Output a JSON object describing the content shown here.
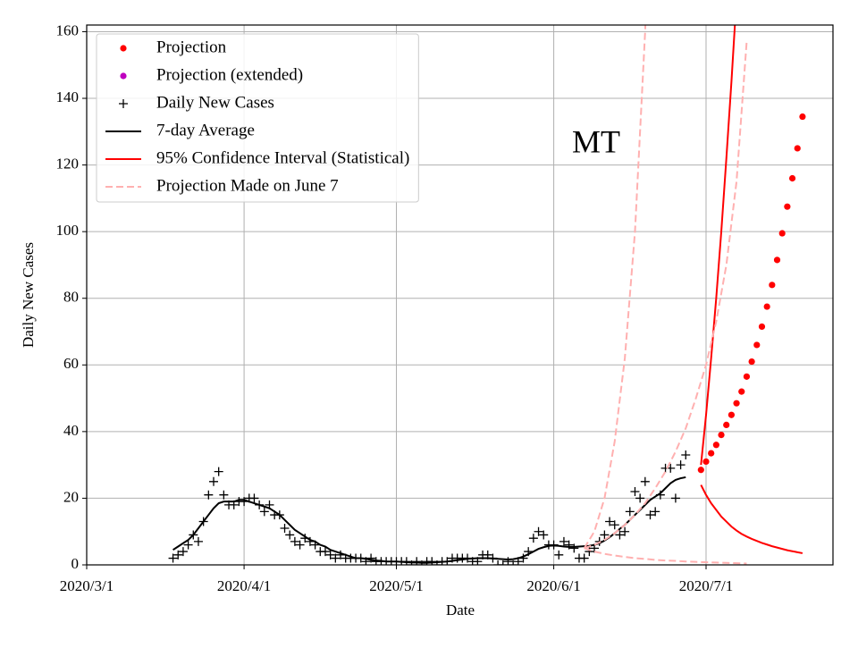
{
  "chart_data": {
    "type": "line",
    "title": "MT",
    "xlabel": "Date",
    "ylabel": "Daily New Cases",
    "xlim": [
      "2020/3/1",
      "2020/7/26"
    ],
    "xticks": [
      "2020/3/1",
      "2020/4/1",
      "2020/5/1",
      "2020/6/1",
      "2020/7/1"
    ],
    "ylim": [
      0,
      162
    ],
    "yticks": [
      0,
      20,
      40,
      60,
      80,
      100,
      120,
      140,
      160
    ],
    "grid": true,
    "legend": "upper left",
    "series": [
      {
        "name": "Projection",
        "color": "#ff0000",
        "style": "dot",
        "x": [
          "2020/6/30",
          "2020/7/1",
          "2020/7/2",
          "2020/7/3",
          "2020/7/4",
          "2020/7/5",
          "2020/7/6",
          "2020/7/7",
          "2020/7/8",
          "2020/7/9",
          "2020/7/10",
          "2020/7/11",
          "2020/7/12",
          "2020/7/13",
          "2020/7/14",
          "2020/7/15",
          "2020/7/16",
          "2020/7/17",
          "2020/7/18",
          "2020/7/19",
          "2020/7/20"
        ],
        "values": [
          28.5,
          31,
          33.5,
          36,
          39,
          42,
          45,
          48.5,
          52,
          56.5,
          61,
          66,
          71.5,
          77.5,
          84,
          91.5,
          99.5,
          107.5,
          116,
          125,
          134.5
        ]
      },
      {
        "name": "Projection (extended)",
        "color": "#bf00bf",
        "style": "dot",
        "x": [],
        "values": []
      },
      {
        "name": "Daily New Cases",
        "color": "#000000",
        "style": "plus",
        "x": [
          "2020/3/18",
          "2020/3/19",
          "2020/3/20",
          "2020/3/21",
          "2020/3/22",
          "2020/3/23",
          "2020/3/24",
          "2020/3/25",
          "2020/3/26",
          "2020/3/27",
          "2020/3/28",
          "2020/3/29",
          "2020/3/30",
          "2020/3/31",
          "2020/4/1",
          "2020/4/2",
          "2020/4/3",
          "2020/4/4",
          "2020/4/5",
          "2020/4/6",
          "2020/4/7",
          "2020/4/8",
          "2020/4/9",
          "2020/4/10",
          "2020/4/11",
          "2020/4/12",
          "2020/4/13",
          "2020/4/14",
          "2020/4/15",
          "2020/4/16",
          "2020/4/17",
          "2020/4/18",
          "2020/4/19",
          "2020/4/20",
          "2020/4/21",
          "2020/4/22",
          "2020/4/23",
          "2020/4/24",
          "2020/4/25",
          "2020/4/26",
          "2020/4/27",
          "2020/4/28",
          "2020/4/29",
          "2020/4/30",
          "2020/5/1",
          "2020/5/2",
          "2020/5/3",
          "2020/5/4",
          "2020/5/5",
          "2020/5/6",
          "2020/5/7",
          "2020/5/8",
          "2020/5/9",
          "2020/5/10",
          "2020/5/11",
          "2020/5/12",
          "2020/5/13",
          "2020/5/14",
          "2020/5/15",
          "2020/5/16",
          "2020/5/17",
          "2020/5/18",
          "2020/5/19",
          "2020/5/20",
          "2020/5/21",
          "2020/5/22",
          "2020/5/23",
          "2020/5/24",
          "2020/5/25",
          "2020/5/26",
          "2020/5/27",
          "2020/5/28",
          "2020/5/29",
          "2020/5/30",
          "2020/5/31",
          "2020/6/1",
          "2020/6/2",
          "2020/6/3",
          "2020/6/4",
          "2020/6/5",
          "2020/6/6",
          "2020/6/7",
          "2020/6/8",
          "2020/6/9",
          "2020/6/10",
          "2020/6/11",
          "2020/6/12",
          "2020/6/13",
          "2020/6/14",
          "2020/6/15",
          "2020/6/16",
          "2020/6/17",
          "2020/6/18",
          "2020/6/19",
          "2020/6/20",
          "2020/6/21",
          "2020/6/22",
          "2020/6/23",
          "2020/6/24",
          "2020/6/25",
          "2020/6/26",
          "2020/6/27"
        ],
        "values": [
          2,
          3,
          4,
          6,
          9,
          7,
          13,
          21,
          25,
          28,
          21,
          18,
          18,
          19,
          19,
          20,
          20,
          18,
          16,
          18,
          15,
          15,
          11,
          9,
          7,
          6,
          8,
          7,
          6,
          4,
          4,
          3,
          2,
          3,
          2,
          2,
          2,
          2,
          1,
          2,
          1,
          1,
          1,
          1,
          1,
          1,
          1,
          0,
          1,
          0,
          1,
          1,
          0,
          1,
          1,
          2,
          2,
          2,
          2,
          1,
          1,
          3,
          3,
          2,
          0,
          0,
          1,
          0,
          1,
          2,
          4,
          8,
          10,
          9,
          6,
          6,
          3,
          7,
          6,
          5,
          2,
          2,
          4,
          5,
          7,
          9,
          13,
          12,
          9,
          10,
          16,
          22,
          20,
          25,
          15,
          16,
          21,
          29,
          29,
          20,
          30,
          33
        ]
      },
      {
        "name": "7-day Average",
        "color": "#000000",
        "style": "line",
        "x": [
          "2020/3/18",
          "2020/3/19",
          "2020/3/20",
          "2020/3/21",
          "2020/3/22",
          "2020/3/23",
          "2020/3/24",
          "2020/3/25",
          "2020/3/26",
          "2020/3/27",
          "2020/3/28",
          "2020/3/29",
          "2020/3/30",
          "2020/3/31",
          "2020/4/1",
          "2020/4/2",
          "2020/4/3",
          "2020/4/4",
          "2020/4/5",
          "2020/4/6",
          "2020/4/7",
          "2020/4/8",
          "2020/4/9",
          "2020/4/10",
          "2020/4/11",
          "2020/4/12",
          "2020/4/13",
          "2020/4/14",
          "2020/4/15",
          "2020/4/16",
          "2020/4/17",
          "2020/4/18",
          "2020/4/19",
          "2020/4/20",
          "2020/4/21",
          "2020/4/22",
          "2020/4/23",
          "2020/4/24",
          "2020/4/25",
          "2020/4/26",
          "2020/4/27",
          "2020/4/28",
          "2020/4/29",
          "2020/4/30",
          "2020/5/1",
          "2020/5/2",
          "2020/5/3",
          "2020/5/4",
          "2020/5/5",
          "2020/5/6",
          "2020/5/7",
          "2020/5/8",
          "2020/5/9",
          "2020/5/10",
          "2020/5/11",
          "2020/5/12",
          "2020/5/13",
          "2020/5/14",
          "2020/5/15",
          "2020/5/16",
          "2020/5/17",
          "2020/5/18",
          "2020/5/19",
          "2020/5/20",
          "2020/5/21",
          "2020/5/22",
          "2020/5/23",
          "2020/5/24",
          "2020/5/25",
          "2020/5/26",
          "2020/5/27",
          "2020/5/28",
          "2020/5/29",
          "2020/5/30",
          "2020/5/31",
          "2020/6/1",
          "2020/6/2",
          "2020/6/3",
          "2020/6/4",
          "2020/6/5",
          "2020/6/6",
          "2020/6/7",
          "2020/6/8",
          "2020/6/9",
          "2020/6/10",
          "2020/6/11",
          "2020/6/12",
          "2020/6/13",
          "2020/6/14",
          "2020/6/15",
          "2020/6/16",
          "2020/6/17",
          "2020/6/18",
          "2020/6/19",
          "2020/6/20",
          "2020/6/21",
          "2020/6/22",
          "2020/6/23",
          "2020/6/24",
          "2020/6/25",
          "2020/6/26",
          "2020/6/27"
        ],
        "values": [
          4.5,
          5.5,
          6.5,
          7.5,
          9,
          11,
          13,
          15,
          17,
          18.5,
          19,
          19,
          19,
          19.5,
          19.5,
          19,
          18.5,
          18,
          17.5,
          17,
          16,
          15,
          13.5,
          12,
          10.5,
          9.5,
          8.5,
          7.5,
          7,
          6,
          5.5,
          4.5,
          4,
          3.5,
          3,
          2.5,
          2,
          2,
          1.8,
          1.5,
          1.3,
          1.2,
          1,
          1,
          1,
          0.9,
          0.8,
          0.7,
          0.7,
          0.6,
          0.6,
          0.7,
          0.8,
          0.9,
          1,
          1.2,
          1.4,
          1.6,
          1.8,
          1.9,
          2,
          2,
          2,
          1.9,
          1.8,
          1.7,
          1.6,
          1.7,
          2,
          2.5,
          3.2,
          4,
          4.8,
          5.3,
          5.7,
          5.8,
          5.7,
          5.5,
          5.4,
          5.4,
          5.5,
          5.6,
          5.7,
          6,
          6.5,
          7.3,
          8.3,
          9.5,
          10.8,
          12,
          13.5,
          15,
          16.5,
          18,
          19.5,
          20.5,
          21.5,
          23,
          24.5,
          25.5,
          26,
          26.3
        ]
      },
      {
        "name": "95% Confidence Interval (Statistical)",
        "color": "#ff0000",
        "style": "band",
        "x": [
          "2020/6/30",
          "2020/7/1",
          "2020/7/2",
          "2020/7/3",
          "2020/7/4",
          "2020/7/5",
          "2020/7/6",
          "2020/7/7",
          "2020/7/8",
          "2020/7/9",
          "2020/7/10",
          "2020/7/11",
          "2020/7/12",
          "2020/7/13",
          "2020/7/14",
          "2020/7/15",
          "2020/7/16",
          "2020/7/17",
          "2020/7/18",
          "2020/7/19",
          "2020/7/20"
        ],
        "upper": [
          30,
          45,
          62,
          80,
          100,
          122,
          145,
          170,
          null,
          null,
          null,
          null,
          null,
          null,
          null,
          null,
          null,
          null,
          null,
          null,
          null
        ],
        "lower": [
          24,
          21,
          18.5,
          16.5,
          14.5,
          13,
          11.5,
          10.3,
          9.3,
          8.5,
          7.8,
          7.2,
          6.6,
          6.1,
          5.6,
          5.2,
          4.8,
          4.4,
          4.1,
          3.8,
          3.5
        ]
      },
      {
        "name": "Projection Made on June 7",
        "color": "#ffb0b0",
        "style": "dashed",
        "x": [
          "2020/6/7",
          "2020/6/9",
          "2020/6/11",
          "2020/6/13",
          "2020/6/15",
          "2020/6/17",
          "2020/6/19",
          "2020/6/21",
          "2020/6/23",
          "2020/6/25",
          "2020/6/27",
          "2020/6/29",
          "2020/7/1",
          "2020/7/3",
          "2020/7/5",
          "2020/7/7",
          "2020/7/9"
        ],
        "values": [
          5,
          6,
          7.5,
          9.5,
          12,
          15,
          18.5,
          23,
          28,
          34,
          41,
          50,
          60,
          73,
          90,
          115,
          157
        ],
        "upper": [
          5,
          10,
          20,
          37,
          62,
          100,
          160,
          250,
          null,
          null,
          null,
          null,
          null,
          null,
          null,
          null,
          null
        ],
        "lower": [
          5,
          4,
          3.3,
          2.8,
          2.4,
          2,
          1.8,
          1.5,
          1.3,
          1.2,
          1,
          0.9,
          0.8,
          0.7,
          0.6,
          0.5,
          0.4
        ]
      }
    ]
  }
}
